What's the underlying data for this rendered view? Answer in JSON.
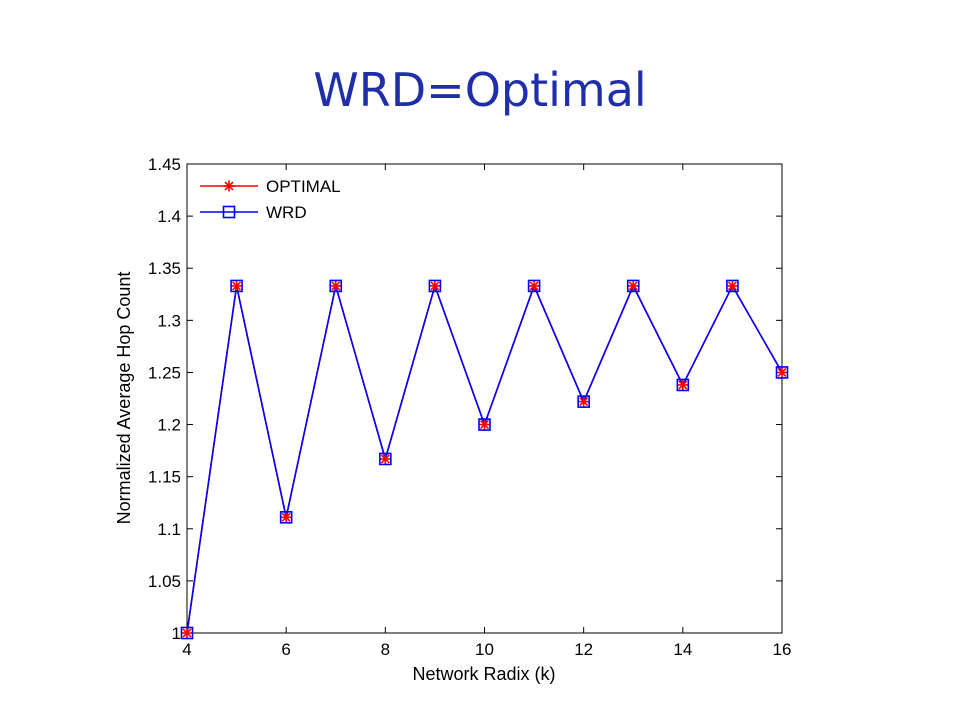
{
  "slide": {
    "title": "WRD=Optimal"
  },
  "chart_data": {
    "type": "line",
    "title": "",
    "xlabel": "Network Radix (k)",
    "ylabel": "Normalized Average Hop Count",
    "xlim": [
      4,
      16
    ],
    "ylim": [
      1,
      1.45
    ],
    "xticks": [
      4,
      6,
      8,
      10,
      12,
      14,
      16
    ],
    "yticks": [
      1,
      1.05,
      1.1,
      1.15,
      1.2,
      1.25,
      1.3,
      1.35,
      1.4,
      1.45
    ],
    "ytick_labels": [
      "1",
      "1.05",
      "1.1",
      "1.15",
      "1.2",
      "1.25",
      "1.3",
      "1.35",
      "1.4",
      "1.45"
    ],
    "legend_position": "top-left",
    "grid": false,
    "x": [
      4,
      5,
      6,
      7,
      8,
      9,
      10,
      11,
      12,
      13,
      14,
      15,
      16
    ],
    "series": [
      {
        "name": "OPTIMAL",
        "color": "#ff0000",
        "marker": "asterisk",
        "values": [
          1.0,
          1.333,
          1.111,
          1.333,
          1.167,
          1.333,
          1.2,
          1.333,
          1.222,
          1.333,
          1.238,
          1.333,
          1.25
        ]
      },
      {
        "name": "WRD",
        "color": "#0000ff",
        "marker": "square",
        "values": [
          1.0,
          1.333,
          1.111,
          1.333,
          1.167,
          1.333,
          1.2,
          1.333,
          1.222,
          1.333,
          1.238,
          1.333,
          1.25
        ]
      }
    ]
  }
}
